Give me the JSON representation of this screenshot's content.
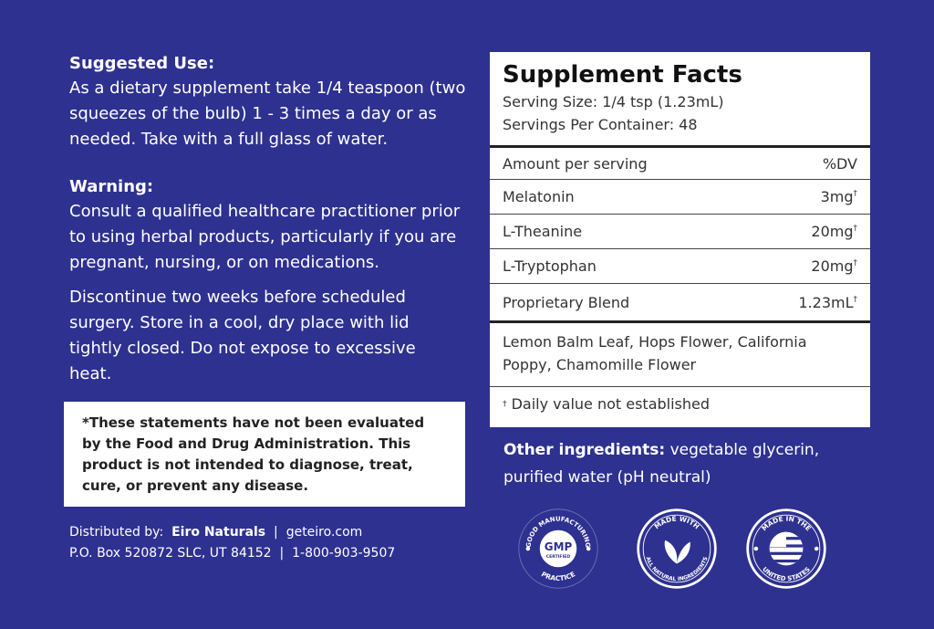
{
  "suggested_use": {
    "heading": "Suggested Use:",
    "text": "As a dietary supplement take 1/4 teaspoon (two squeezes of the bulb) 1 - 3 times a day or as needed. Take with a full glass of water."
  },
  "warning": {
    "heading": "Warning:",
    "text": "Consult a qualified healthcare practitioner prior to using herbal products, particularly if you are pregnant, nursing, or on medications.",
    "text2": "Discontinue two weeks before scheduled surgery. Store in a cool, dry place with lid tightly closed. Do not expose to excessive heat."
  },
  "disclaimer": "*These statements have not been evaluated by the Food and Drug Administration. This product is not intended to diagnose, treat, cure, or prevent any disease.",
  "footer": {
    "distributed_label": "Distributed by:",
    "company": "Eiro Naturals",
    "website": "geteiro.com",
    "address": "P.O. Box 520872 SLC, UT 84152",
    "phone": "1-800-903-9507"
  },
  "facts": {
    "title": "Supplement Facts",
    "serving_size": "Serving Size: 1/4 tsp (1.23mL)",
    "servings": "Servings Per Container: 48",
    "header": {
      "left": "Amount per serving",
      "right": "%DV"
    },
    "rows": [
      {
        "name": "Melatonin",
        "amount": "3mg",
        "mark": "†"
      },
      {
        "name": "L-Theanine",
        "amount": "20mg",
        "mark": "†"
      },
      {
        "name": "L-Tryptophan",
        "amount": "20mg",
        "mark": "†"
      },
      {
        "name": "Proprietary Blend",
        "amount": "1.23mL",
        "mark": "†"
      }
    ],
    "blend": "Lemon Balm Leaf, Hops Flower, California Poppy, Chamomille Flower",
    "footnote_mark": "†",
    "footnote": "Daily value not established"
  },
  "other": {
    "label": "Other ingredients:",
    "text": "vegetable glycerin, purified water (pH neutral)"
  },
  "badges": [
    {
      "icon": "gmp-badge-icon",
      "center": "GMP",
      "sub": "CERTIFIED",
      "top": "GOOD MANUFACTURING",
      "bottom": "PRACTICE"
    },
    {
      "icon": "leaf-badge-icon",
      "top": "MADE WITH",
      "bottom": "ALL NATURAL INGREDIENTS"
    },
    {
      "icon": "usa-flag-badge-icon",
      "top": "MADE IN THE",
      "bottom": "UNITED STATES"
    }
  ],
  "colors": {
    "background": "#2e3190",
    "panel": "#ffffff"
  }
}
